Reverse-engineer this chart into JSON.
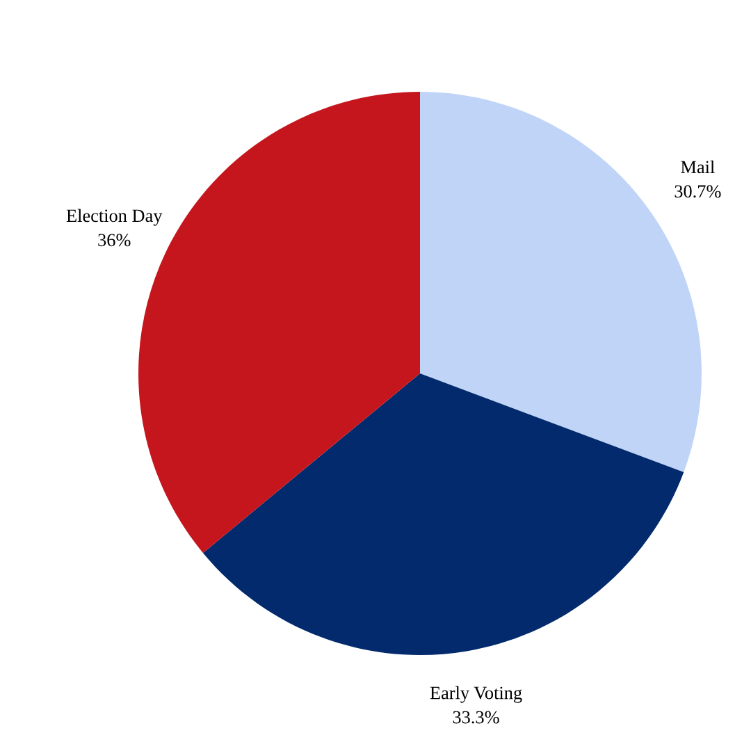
{
  "chart_data": {
    "type": "pie",
    "categories": [
      "Mail",
      "Early Voting",
      "Election Day"
    ],
    "values": [
      30.7,
      33.3,
      36
    ],
    "value_labels": [
      "30.7%",
      "33.3%",
      "36%"
    ],
    "colors": [
      "#c0d4f8",
      "#022a6c",
      "#c5161d"
    ],
    "legend": false
  }
}
